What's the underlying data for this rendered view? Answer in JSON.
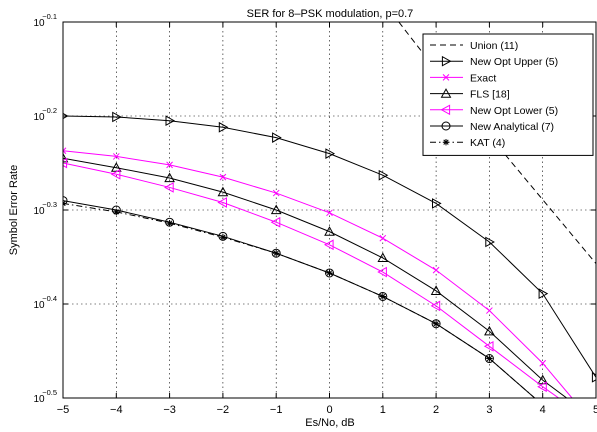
{
  "chart_data": {
    "type": "line",
    "title": "SER for 8–PSK modulation, p=0.7",
    "xlabel": "Es/No, dB",
    "ylabel": "Symbol Error Rate",
    "xlim": [
      -5,
      5
    ],
    "ylim_log10": [
      -0.5,
      -0.1
    ],
    "y_scale": "log",
    "grid": true,
    "legend_position": "top-right",
    "x_ticks": [
      "−5",
      "−4",
      "−3",
      "−2",
      "−1",
      "0",
      "1",
      "2",
      "3",
      "4",
      "5"
    ],
    "y_ticks": [
      {
        "value": -0.1,
        "label": "10",
        "exp": "−0.1"
      },
      {
        "value": -0.2,
        "label": "10",
        "exp": "−0.2"
      },
      {
        "value": -0.3,
        "label": "10",
        "exp": "−0.3"
      },
      {
        "value": -0.4,
        "label": "10",
        "exp": "−0.4"
      },
      {
        "value": -0.5,
        "label": "10",
        "exp": "−0.5"
      }
    ],
    "series": [
      {
        "name": "Union (11)",
        "color": "#000000",
        "dash": "dashed",
        "marker": "none",
        "x": [
          1.3,
          2,
          3,
          4,
          5
        ],
        "log10_y": [
          -0.1,
          -0.151,
          -0.221,
          -0.289,
          -0.357
        ]
      },
      {
        "name": "New Opt Upper (5)",
        "color": "#000000",
        "dash": "solid",
        "marker": "triangle-right",
        "x": [
          -5,
          -4,
          -3,
          -2,
          -1,
          0,
          1,
          2,
          3,
          4,
          5
        ],
        "log10_y": [
          -0.2,
          -0.201,
          -0.205,
          -0.212,
          -0.223,
          -0.24,
          -0.263,
          -0.293,
          -0.334,
          -0.389,
          -0.478
        ]
      },
      {
        "name": "Exact",
        "color": "#ff00ff",
        "dash": "solid",
        "marker": "x",
        "x": [
          -5,
          -4,
          -3,
          -2,
          -1,
          0,
          1,
          2,
          3,
          4,
          4.55
        ],
        "log10_y": [
          -0.237,
          -0.243,
          -0.252,
          -0.265,
          -0.282,
          -0.303,
          -0.33,
          -0.364,
          -0.407,
          -0.463,
          -0.5
        ]
      },
      {
        "name": "FLS [18]",
        "color": "#000000",
        "dash": "solid",
        "marker": "triangle-up",
        "x": [
          -5,
          -4,
          -3,
          -2,
          -1,
          0,
          1,
          2,
          3,
          4,
          4.45
        ],
        "log10_y": [
          -0.245,
          -0.255,
          -0.266,
          -0.281,
          -0.3,
          -0.323,
          -0.351,
          -0.386,
          -0.429,
          -0.481,
          -0.5
        ]
      },
      {
        "name": "New Opt Lower (5)",
        "color": "#ff00ff",
        "dash": "solid",
        "marker": "triangle-left",
        "x": [
          -5,
          -4,
          -3,
          -2,
          -1,
          0,
          1,
          2,
          3,
          4,
          4.3
        ],
        "log10_y": [
          -0.25,
          -0.262,
          -0.276,
          -0.292,
          -0.313,
          -0.337,
          -0.366,
          -0.402,
          -0.445,
          -0.488,
          -0.5
        ]
      },
      {
        "name": "New Analytical (7)",
        "color": "#000000",
        "dash": "solid",
        "marker": "circle",
        "x": [
          -5,
          -4,
          -3,
          -2,
          -1,
          0,
          1,
          2,
          3,
          3.85
        ],
        "log10_y": [
          -0.29,
          -0.3,
          -0.313,
          -0.328,
          -0.346,
          -0.367,
          -0.392,
          -0.421,
          -0.458,
          -0.5
        ]
      },
      {
        "name": "KAT (4)",
        "color": "#000000",
        "dash": "dashdot",
        "marker": "asterisk",
        "x": [
          -5,
          -4,
          -3,
          -2,
          -1,
          0,
          1,
          2,
          3,
          3.85
        ],
        "log10_y": [
          -0.293,
          -0.302,
          -0.314,
          -0.329,
          -0.346,
          -0.367,
          -0.392,
          -0.421,
          -0.458,
          -0.5
        ]
      }
    ]
  }
}
